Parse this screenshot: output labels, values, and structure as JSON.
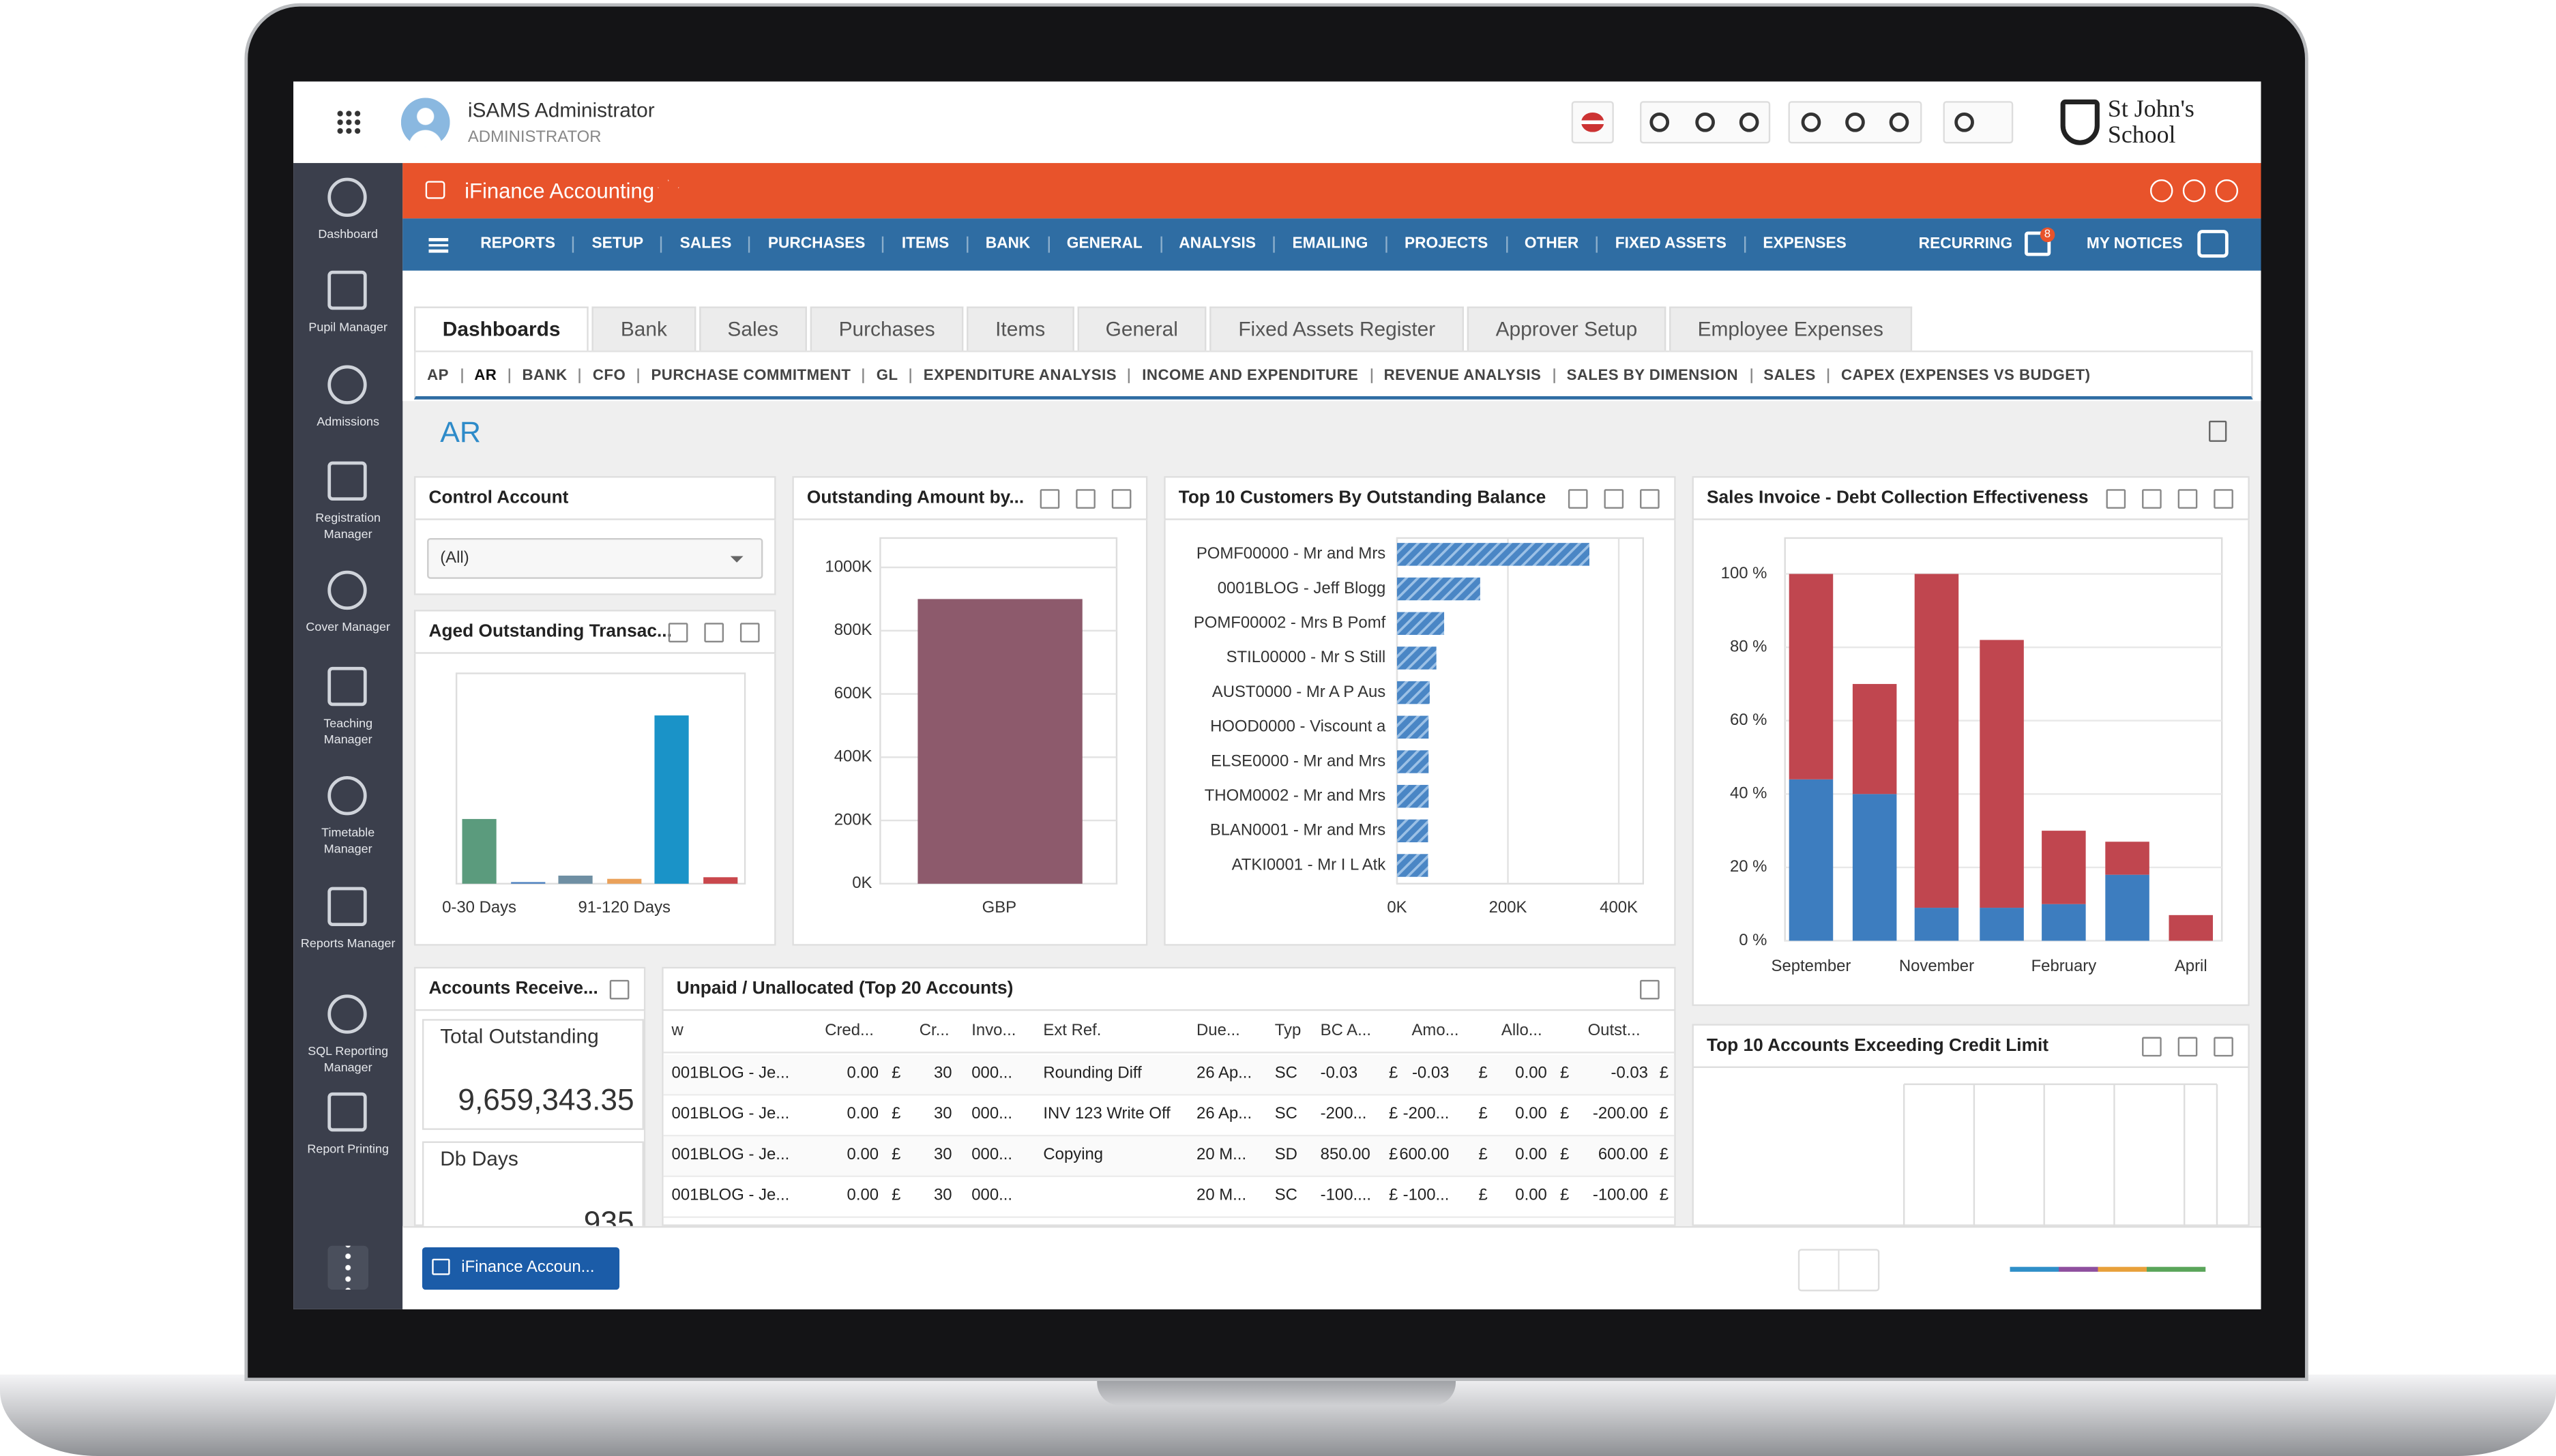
{
  "header": {
    "user_name": "iSAMS Administrator",
    "user_role": "ADMINISTRATOR",
    "school_name": [
      "St John's",
      "School"
    ]
  },
  "sidebar": [
    "Dashboard",
    "Pupil Manager",
    "Admissions",
    "Registration Manager",
    "Cover Manager",
    "Teaching Manager",
    "Timetable Manager",
    "Reports Manager",
    "SQL Reporting Manager",
    "Report Printing"
  ],
  "app": {
    "title": "iFinance Accounting",
    "menu": [
      "REPORTS",
      "SETUP",
      "SALES",
      "PURCHASES",
      "ITEMS",
      "BANK",
      "GENERAL",
      "ANALYSIS",
      "EMAILING",
      "PROJECTS",
      "OTHER",
      "FIXED ASSETS",
      "EXPENSES"
    ],
    "recurring": "RECURRING",
    "badge": "8",
    "notices": "MY NOTICES"
  },
  "tabs": [
    "Dashboards",
    "Bank",
    "Sales",
    "Purchases",
    "Items",
    "General",
    "Fixed Assets Register",
    "Approver Setup",
    "Employee Expenses"
  ],
  "subtabs": [
    "AP",
    "AR",
    "BANK",
    "CFO",
    "PURCHASE COMMITMENT",
    "GL",
    "EXPENDITURE ANALYSIS",
    "INCOME AND EXPENDITURE",
    "REVENUE ANALYSIS",
    "SALES BY DIMENSION",
    "SALES",
    "CAPEX (EXPENSES VS BUDGET)"
  ],
  "page_title": "AR",
  "control_account": {
    "title": "Control Account",
    "value": "(All)"
  },
  "aged_chart": {
    "type": "bar",
    "title": "Aged Outstanding Transac...",
    "categories": [
      "0-30 Days",
      null,
      null,
      "91-120 Days",
      null,
      null
    ],
    "values": [
      40,
      1,
      5,
      3,
      104,
      4
    ],
    "colors": [
      "#5b9b7d",
      "#4a7fbf",
      "#6f8fa3",
      "#eaa15a",
      "#1a93c8",
      "#c9474c"
    ],
    "ylim": [
      0,
      130
    ]
  },
  "outstanding_chart": {
    "type": "bar",
    "title": "Outstanding Amount by...",
    "categories": [
      "GBP"
    ],
    "values": [
      900000
    ],
    "color": "#8d5a6c",
    "ylim": [
      0,
      1000000
    ],
    "yticks": [
      {
        "value": 0,
        "label": "0K"
      },
      {
        "value": 200000,
        "label": "200K"
      },
      {
        "value": 400000,
        "label": "400K"
      },
      {
        "value": 600000,
        "label": "600K"
      },
      {
        "value": 800000,
        "label": "800K"
      },
      {
        "value": 1000000,
        "label": "1000K"
      }
    ]
  },
  "customers_chart": {
    "type": "hbar",
    "title": "Top 10 Customers By Outstanding Balance",
    "categories": [
      "POMF00000 - Mr and Mrs",
      "0001BLOG - Jeff Blogg",
      "POMF00002 - Mrs B Pomf",
      "STIL00000 - Mr S Still",
      "AUST0000 - Mr A P Aus",
      "HOOD0000 - Viscount a",
      "ELSE0000 - Mr and Mrs",
      "THOM0002 - Mr and Mrs",
      "BLAN0001 - Mr and Mrs",
      "ATKI0001 - Mr I L Atk"
    ],
    "values": [
      347000,
      150000,
      85000,
      71000,
      59000,
      57000,
      57000,
      57000,
      56000,
      56000
    ],
    "color": "#4a86c5",
    "xlim": [
      0,
      444000
    ],
    "xticks": [
      {
        "value": 0,
        "label": "0K"
      },
      {
        "value": 200000,
        "label": "200K"
      },
      {
        "value": 400000,
        "label": "400K"
      }
    ]
  },
  "collection_chart": {
    "type": "stacked_bar",
    "title": "Sales Invoice - Debt Collection Effectiveness",
    "categories": [
      "September",
      null,
      "November",
      null,
      "February",
      null,
      "April"
    ],
    "series": [
      {
        "color": "#3d7dbf",
        "values": [
          44,
          40,
          9,
          9,
          10,
          18,
          0
        ]
      },
      {
        "color": "#c0464f",
        "values": [
          56,
          30,
          91,
          73,
          20,
          9,
          7
        ]
      }
    ],
    "ylim": [
      0,
      100
    ],
    "yticks": [
      {
        "value": 0,
        "label": "0 %"
      },
      {
        "value": 20,
        "label": "20 %"
      },
      {
        "value": 40,
        "label": "40 %"
      },
      {
        "value": 60,
        "label": "60 %"
      },
      {
        "value": 80,
        "label": "80 %"
      },
      {
        "value": 100,
        "label": "100 %"
      }
    ]
  },
  "credit_limit_chart": {
    "title": "Top 10 Accounts Exceeding Credit Limit"
  },
  "kpi": {
    "title": "Accounts Receive...",
    "items": [
      {
        "label": "Total Outstanding",
        "value": "9,659,343.35"
      },
      {
        "label": "Db Days",
        "value": "935"
      }
    ]
  },
  "table": {
    "title": "Unpaid / Unallocated (Top 20 Accounts)",
    "columns": [
      "w",
      "Cred...",
      "Cr...",
      "Invo...",
      "Ext Ref.",
      "Due...",
      "Typ",
      "BC A...",
      "Amo...",
      "Allo...",
      "Outst..."
    ],
    "rows": [
      [
        "001BLOG - Je...",
        "0.00",
        "£",
        "30",
        "000...",
        "Rounding Diff",
        "26 Ap...",
        "SC",
        "-0.03",
        "£",
        "-0.03",
        "£",
        "0.00",
        "£",
        "-0.03",
        "£"
      ],
      [
        "001BLOG - Je...",
        "0.00",
        "£",
        "30",
        "000...",
        "INV 123 Write Off",
        "26 Ap...",
        "SC",
        "-200...",
        "£",
        "-200...",
        "£",
        "0.00",
        "£",
        "-200.00",
        "£"
      ],
      [
        "001BLOG - Je...",
        "0.00",
        "£",
        "30",
        "000...",
        "Copying",
        "20 M...",
        "SD",
        "850.00",
        "£",
        "600.00",
        "£",
        "0.00",
        "£",
        "600.00",
        "£"
      ],
      [
        "001BLOG - Je...",
        "0.00",
        "£",
        "30",
        "000...",
        null,
        "20 M...",
        "SC",
        "-100....",
        "£",
        "-100...",
        "£",
        "0.00",
        "£",
        "-100.00",
        "£"
      ]
    ]
  },
  "taskbar": {
    "button": "iFinance Accoun..."
  }
}
